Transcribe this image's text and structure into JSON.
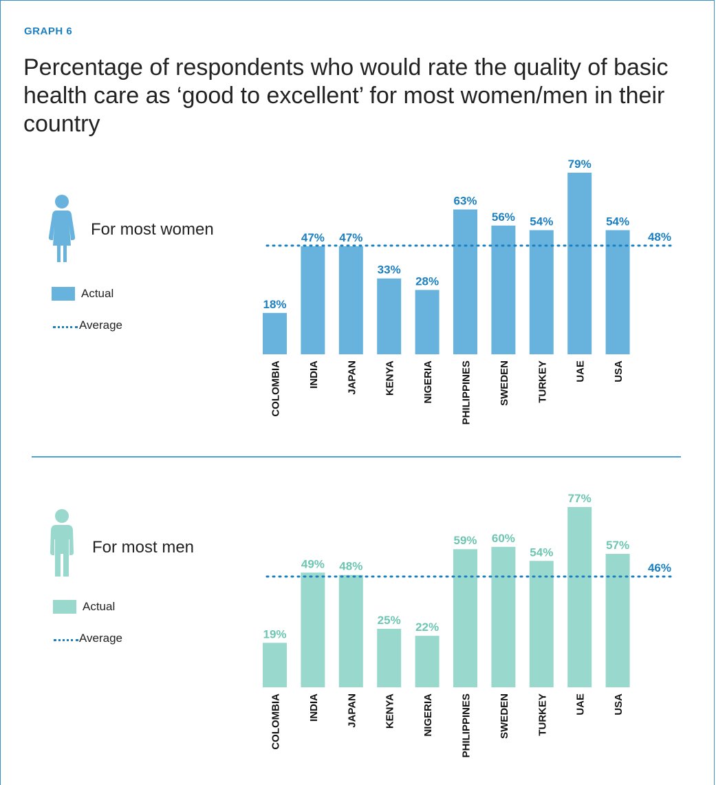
{
  "header": {
    "graph_label": "GRAPH 6",
    "title": "Percentage of respondents who would rate the quality of basic health care as ‘good to excellent’ for most women/men in their country"
  },
  "colors": {
    "accent": "#1b7fc0",
    "women_bar": "#68b3dd",
    "men_bar": "#99d9cd",
    "men_label": "#6cc6b2",
    "avg_line": "#1b7fc0"
  },
  "panels": [
    {
      "legend_title": "For most women",
      "legend_actual": "Actual",
      "legend_average": "Average",
      "icon": "woman-icon",
      "average_label": "48%"
    },
    {
      "legend_title": "For most men",
      "legend_actual": "Actual",
      "legend_average": "Average",
      "icon": "man-icon",
      "average_label": "46%"
    }
  ],
  "chart_data": [
    {
      "type": "bar",
      "categories": [
        "COLOMBIA",
        "INDIA",
        "JAPAN",
        "KENYA",
        "NIGERIA",
        "PHILIPPINES",
        "SWEDEN",
        "TURKEY",
        "UAE",
        "USA"
      ],
      "values": [
        18,
        47,
        47,
        33,
        28,
        63,
        56,
        54,
        79,
        54
      ],
      "value_labels": [
        "18%",
        "47%",
        "47%",
        "33%",
        "28%",
        "63%",
        "56%",
        "54%",
        "79%",
        "54%"
      ],
      "average": 48,
      "average_label": "48%",
      "ylim": [
        0,
        79
      ]
    },
    {
      "type": "bar",
      "categories": [
        "COLOMBIA",
        "INDIA",
        "JAPAN",
        "KENYA",
        "NIGERIA",
        "PHILIPPINES",
        "SWEDEN",
        "TURKEY",
        "UAE",
        "USA"
      ],
      "values": [
        19,
        49,
        48,
        25,
        22,
        59,
        60,
        54,
        77,
        57
      ],
      "value_labels": [
        "19%",
        "49%",
        "48%",
        "25%",
        "22%",
        "59%",
        "60%",
        "54%",
        "77%",
        "57%"
      ],
      "average": 46,
      "average_label": "46%",
      "ylim": [
        0,
        77
      ]
    }
  ]
}
